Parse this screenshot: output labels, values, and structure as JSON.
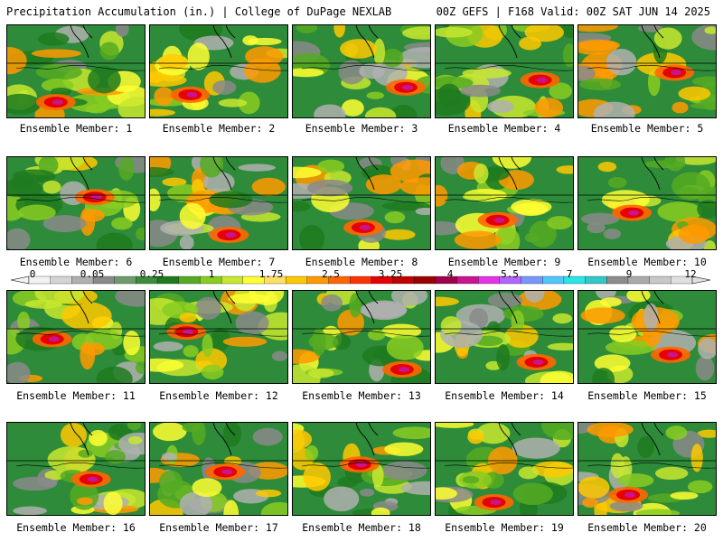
{
  "header": {
    "left": "Precipitation Accumulation (in.) | College of DuPage NEXLAB",
    "right": "00Z GEFS | F168 Valid: 00Z SAT JUN 14 2025"
  },
  "panels": [
    {
      "label": "Ensemble Member: 1"
    },
    {
      "label": "Ensemble Member: 2"
    },
    {
      "label": "Ensemble Member: 3"
    },
    {
      "label": "Ensemble Member: 4"
    },
    {
      "label": "Ensemble Member: 5"
    },
    {
      "label": "Ensemble Member: 6"
    },
    {
      "label": "Ensemble Member: 7"
    },
    {
      "label": "Ensemble Member: 8"
    },
    {
      "label": "Ensemble Member: 9"
    },
    {
      "label": "Ensemble Member: 10"
    },
    {
      "label": "Ensemble Member: 11"
    },
    {
      "label": "Ensemble Member: 12"
    },
    {
      "label": "Ensemble Member: 13"
    },
    {
      "label": "Ensemble Member: 14"
    },
    {
      "label": "Ensemble Member: 15"
    },
    {
      "label": "Ensemble Member: 16"
    },
    {
      "label": "Ensemble Member: 17"
    },
    {
      "label": "Ensemble Member: 18"
    },
    {
      "label": "Ensemble Member: 19"
    },
    {
      "label": "Ensemble Member: 20"
    }
  ],
  "colorbar": {
    "labels": [
      "0",
      "0.05",
      "0.25",
      "1",
      "1.75",
      "2.5",
      "3.25",
      "4",
      "5.5",
      "7",
      "9",
      "12"
    ],
    "colors": [
      "#f2f2f2",
      "#d4d4d4",
      "#b0b0b0",
      "#8a8a8a",
      "#6e9b6e",
      "#3c8c3c",
      "#1f7a1f",
      "#55aa22",
      "#88cc22",
      "#c8e830",
      "#ffff33",
      "#ffe066",
      "#ffc800",
      "#ff9900",
      "#ff6600",
      "#ff3300",
      "#e60000",
      "#c00000",
      "#9a0000",
      "#a0004a",
      "#c81490",
      "#e632e6",
      "#b464ff",
      "#7896ff",
      "#50c8ff",
      "#28e6e6",
      "#30c8c8",
      "#8c8c8c",
      "#aaaaaa",
      "#c8c8c8",
      "#e0e0e0"
    ]
  }
}
